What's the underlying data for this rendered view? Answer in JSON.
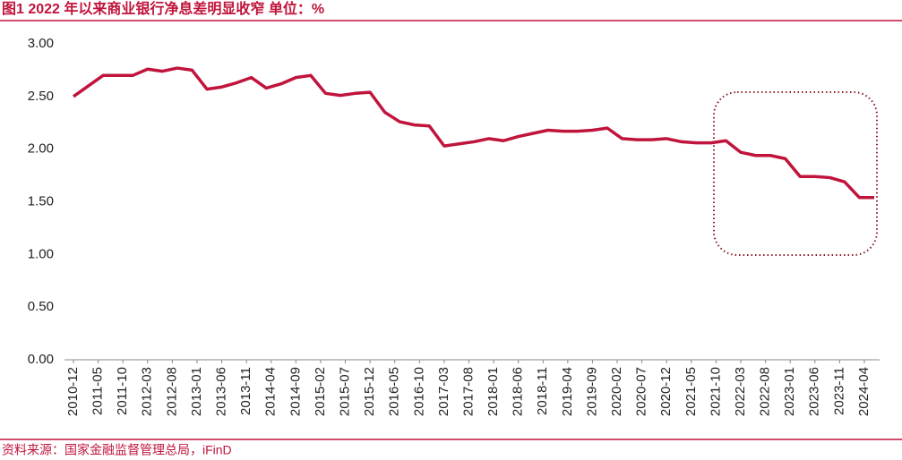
{
  "chart_data": {
    "type": "line",
    "title": "图1  2022 年以来商业银行净息差明显收窄  单位：%",
    "source": "资料来源：国家金融监督管理总局，iFinD",
    "x": [
      "2010-12",
      "2011-03",
      "2011-06",
      "2011-09",
      "2011-12",
      "2012-03",
      "2012-06",
      "2012-09",
      "2012-12",
      "2013-03",
      "2013-06",
      "2013-09",
      "2013-12",
      "2014-03",
      "2014-06",
      "2014-09",
      "2014-12",
      "2015-03",
      "2015-06",
      "2015-09",
      "2015-12",
      "2016-03",
      "2016-06",
      "2016-09",
      "2016-12",
      "2017-03",
      "2017-06",
      "2017-09",
      "2017-12",
      "2018-03",
      "2018-06",
      "2018-09",
      "2018-12",
      "2019-03",
      "2019-06",
      "2019-09",
      "2019-12",
      "2020-03",
      "2020-06",
      "2020-09",
      "2020-12",
      "2021-03",
      "2021-06",
      "2021-09",
      "2021-12",
      "2022-03",
      "2022-06",
      "2022-09",
      "2022-12",
      "2023-03",
      "2023-06",
      "2023-09",
      "2023-12",
      "2024-03",
      "2024-06"
    ],
    "series": [
      {
        "name": "商业银行净息差",
        "color": "#c0143c",
        "values": [
          2.5,
          2.6,
          2.7,
          2.7,
          2.7,
          2.76,
          2.74,
          2.77,
          2.75,
          2.57,
          2.59,
          2.63,
          2.68,
          2.58,
          2.62,
          2.68,
          2.7,
          2.53,
          2.51,
          2.53,
          2.54,
          2.35,
          2.26,
          2.23,
          2.22,
          2.03,
          2.05,
          2.07,
          2.1,
          2.08,
          2.12,
          2.15,
          2.18,
          2.17,
          2.17,
          2.18,
          2.2,
          2.1,
          2.09,
          2.09,
          2.1,
          2.07,
          2.06,
          2.06,
          2.08,
          1.97,
          1.94,
          1.94,
          1.91,
          1.74,
          1.74,
          1.73,
          1.69,
          1.54,
          1.54
        ]
      }
    ],
    "xlim": [
      "2010-12",
      "2024-06"
    ],
    "xticks": [
      "2010-12",
      "2011-05",
      "2011-10",
      "2012-03",
      "2012-08",
      "2013-01",
      "2013-06",
      "2013-11",
      "2014-04",
      "2014-09",
      "2015-02",
      "2015-07",
      "2015-12",
      "2016-05",
      "2016-10",
      "2017-03",
      "2017-08",
      "2018-01",
      "2018-06",
      "2018-11",
      "2019-04",
      "2019-09",
      "2020-02",
      "2020-07",
      "2020-12",
      "2021-05",
      "2021-10",
      "2022-03",
      "2022-08",
      "2023-01",
      "2023-06",
      "2023-11",
      "2024-04"
    ],
    "ylim": [
      0,
      3
    ],
    "yticks": [
      {
        "value": 0,
        "label": "0.00"
      },
      {
        "value": 0.5,
        "label": "0.50"
      },
      {
        "value": 1,
        "label": "1.00"
      },
      {
        "value": 1.5,
        "label": "1.50"
      },
      {
        "value": 2,
        "label": "2.00"
      },
      {
        "value": 2.5,
        "label": "2.50"
      },
      {
        "value": 3,
        "label": "3.00"
      }
    ]
  }
}
